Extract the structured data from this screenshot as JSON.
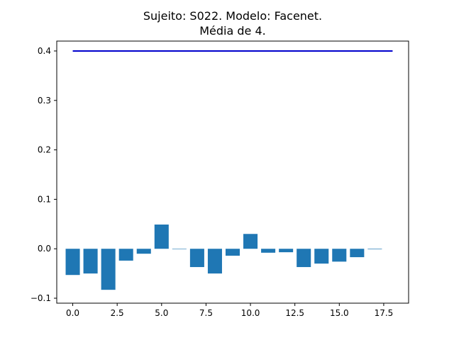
{
  "chart_data": {
    "type": "bar",
    "title": "Sujeito: S022. Modelo: Facenet.",
    "subtitle": "Média de 4.",
    "x": [
      0,
      1,
      2,
      3,
      4,
      5,
      6,
      7,
      8,
      9,
      10,
      11,
      12,
      13,
      14,
      15,
      16,
      17
    ],
    "values": [
      -0.053,
      -0.05,
      -0.083,
      -0.024,
      -0.01,
      0.049,
      0.0,
      -0.037,
      -0.05,
      -0.014,
      0.03,
      -0.008,
      -0.007,
      -0.037,
      -0.03,
      -0.026,
      -0.017,
      -0.001
    ],
    "bar_color": "#1f77b4",
    "threshold_line": {
      "y": 0.4,
      "x_start": 0,
      "x_end": 18,
      "color": "#0000cc"
    },
    "xlim": [
      -0.9,
      18.9
    ],
    "ylim": [
      -0.11,
      0.42
    ],
    "xticks": [
      0.0,
      2.5,
      5.0,
      7.5,
      10.0,
      12.5,
      15.0,
      17.5
    ],
    "xtick_labels": [
      "0.0",
      "2.5",
      "5.0",
      "7.5",
      "10.0",
      "12.5",
      "15.0",
      "17.5"
    ],
    "yticks": [
      -0.1,
      0.0,
      0.1,
      0.2,
      0.3,
      0.4
    ],
    "ytick_labels": [
      "−0.1",
      "0.0",
      "0.1",
      "0.2",
      "0.3",
      "0.4"
    ],
    "grid": false
  }
}
